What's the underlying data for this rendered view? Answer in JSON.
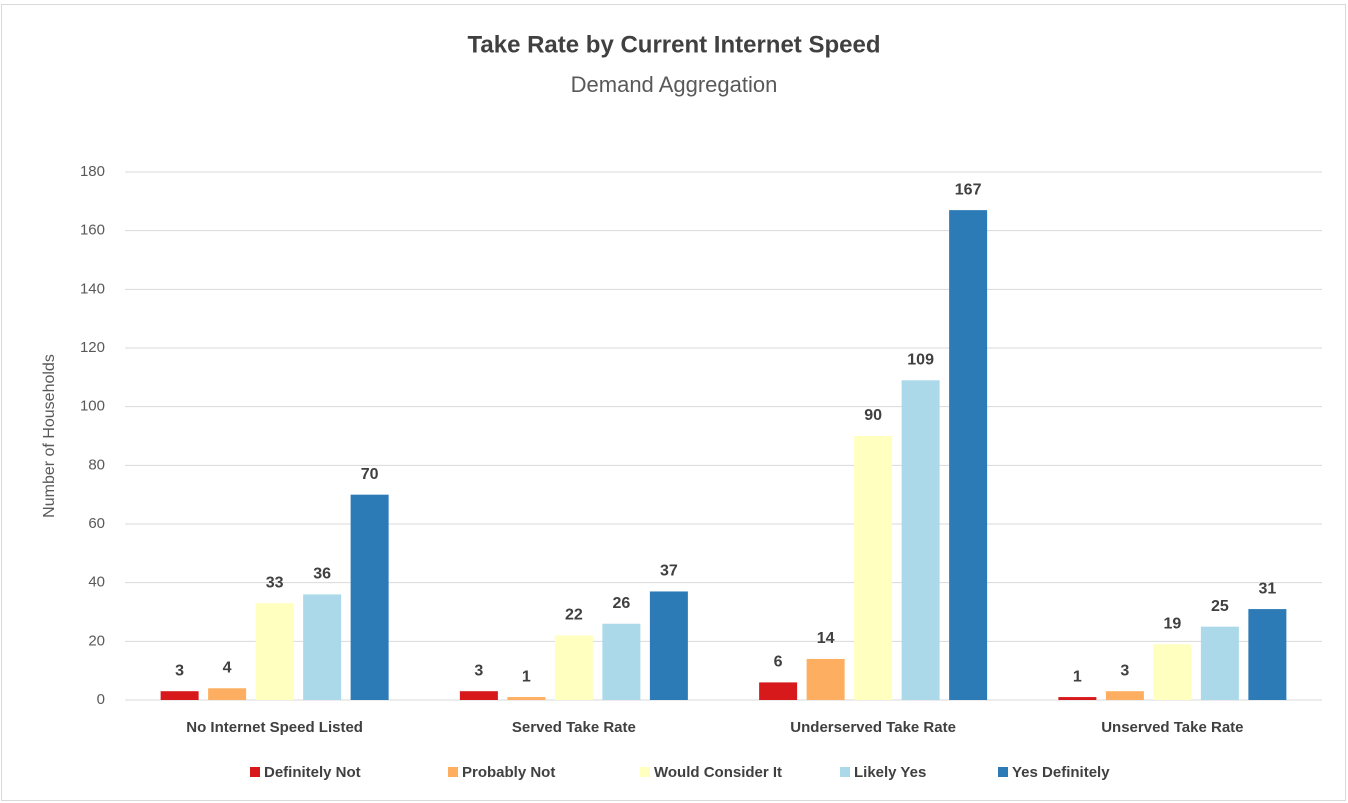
{
  "chart_data": {
    "type": "bar",
    "title": "Take Rate by Current Internet Speed",
    "subtitle": "Demand Aggregation",
    "y_label": "Number of Households",
    "categories": [
      "No Internet Speed Listed",
      "Served Take Rate",
      "Underserved Take Rate",
      "Unserved Take Rate"
    ],
    "series": [
      {
        "name": "Definitely Not",
        "color": "#d7191c",
        "values": [
          3,
          3,
          6,
          1
        ]
      },
      {
        "name": "Probably Not",
        "color": "#fdae61",
        "values": [
          4,
          1,
          14,
          3
        ]
      },
      {
        "name": "Would Consider It",
        "color": "#ffffbf",
        "values": [
          33,
          22,
          90,
          19
        ]
      },
      {
        "name": "Likely Yes",
        "color": "#abd9e9",
        "values": [
          36,
          26,
          109,
          25
        ]
      },
      {
        "name": "Yes Definitely",
        "color": "#2c7bb6",
        "values": [
          70,
          37,
          167,
          31
        ]
      }
    ],
    "ylim": [
      0,
      180
    ],
    "yticks": [
      0,
      20,
      40,
      60,
      80,
      100,
      120,
      140,
      160,
      180
    ],
    "grid": true,
    "legend": "bottom"
  }
}
